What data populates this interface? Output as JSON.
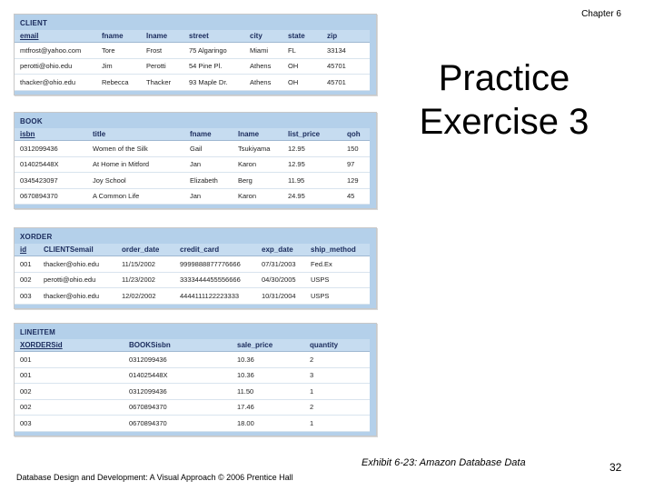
{
  "header": {
    "chapter": "Chapter 6"
  },
  "title": {
    "line1": "Practice",
    "line2": "Exercise 3"
  },
  "caption": "Exhibit 6-23: Amazon Database Data",
  "footer": "Database Design and Development: A Visual Approach   © 2006 Prentice Hall",
  "page_number": "32",
  "tables": {
    "client": {
      "name": "CLIENT",
      "columns": [
        "email",
        "fname",
        "lname",
        "street",
        "city",
        "state",
        "zip"
      ],
      "rows": [
        [
          "mtfrost@yahoo.com",
          "Tore",
          "Frost",
          "75 Algaringo",
          "Miami",
          "FL",
          "33134"
        ],
        [
          "perotti@ohio.edu",
          "Jim",
          "Perotti",
          "54 Pine Pl.",
          "Athens",
          "OH",
          "45701"
        ],
        [
          "thacker@ohio.edu",
          "Rebecca",
          "Thacker",
          "93 Maple Dr.",
          "Athens",
          "OH",
          "45701"
        ]
      ]
    },
    "book": {
      "name": "BOOK",
      "columns": [
        "isbn",
        "title",
        "fname",
        "lname",
        "list_price",
        "qoh"
      ],
      "rows": [
        [
          "0312099436",
          "Women of the Silk",
          "Gail",
          "Tsukiyama",
          "12.95",
          "150"
        ],
        [
          "014025448X",
          "At Home in Mitford",
          "Jan",
          "Karon",
          "12.95",
          "97"
        ],
        [
          "0345423097",
          "Joy School",
          "Elizabeth",
          "Berg",
          "11.95",
          "129"
        ],
        [
          "0670894370",
          "A Common Life",
          "Jan",
          "Karon",
          "24.95",
          "45"
        ]
      ]
    },
    "xorder": {
      "name": "XORDER",
      "columns": [
        "id",
        "CLIENTSemail",
        "order_date",
        "credit_card",
        "exp_date",
        "ship_method"
      ],
      "rows": [
        [
          "001",
          "thacker@ohio.edu",
          "11/15/2002",
          "9999888877776666",
          "07/31/2003",
          "Fed.Ex"
        ],
        [
          "002",
          "perotti@ohio.edu",
          "11/23/2002",
          "3333444455556666",
          "04/30/2005",
          "USPS"
        ],
        [
          "003",
          "thacker@ohio.edu",
          "12/02/2002",
          "4444111122223333",
          "10/31/2004",
          "USPS"
        ]
      ]
    },
    "lineitem": {
      "name": "LINEITEM",
      "columns": [
        "XORDERSid",
        "BOOKSisbn",
        "sale_price",
        "quantity"
      ],
      "rows": [
        [
          "001",
          "0312099436",
          "10.36",
          "2"
        ],
        [
          "001",
          "014025448X",
          "10.36",
          "3"
        ],
        [
          "002",
          "0312099436",
          "11.50",
          "1"
        ],
        [
          "002",
          "0670894370",
          "17.46",
          "2"
        ],
        [
          "003",
          "0670894370",
          "18.00",
          "1"
        ]
      ]
    }
  }
}
